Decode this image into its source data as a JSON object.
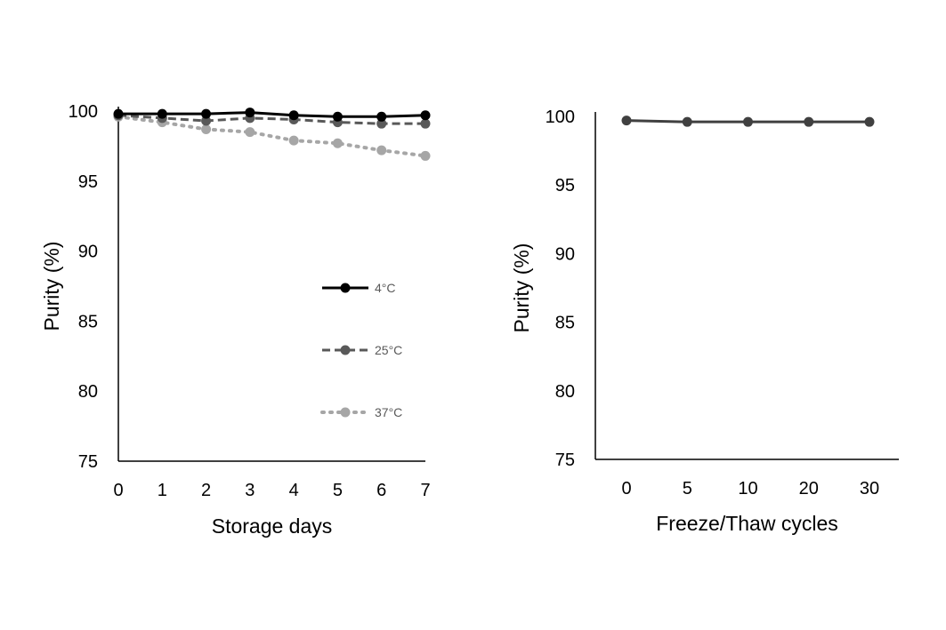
{
  "chart_data": [
    {
      "type": "line",
      "xlabel": "Storage days",
      "ylabel": "Purity (%)",
      "categories": [
        "0",
        "1",
        "2",
        "3",
        "4",
        "5",
        "6",
        "7"
      ],
      "ylim": [
        75,
        100
      ],
      "yticks": [
        "75",
        "80",
        "85",
        "90",
        "95",
        "100"
      ],
      "legend_position": "center-right",
      "series": [
        {
          "name": "4°C",
          "style": "solid",
          "color": "#000000",
          "values": [
            99.8,
            99.8,
            99.8,
            99.9,
            99.7,
            99.6,
            99.6,
            99.7
          ]
        },
        {
          "name": "25°C",
          "style": "dashed",
          "color": "#595959",
          "values": [
            99.7,
            99.5,
            99.3,
            99.5,
            99.4,
            99.2,
            99.1,
            99.1
          ]
        },
        {
          "name": "37°C",
          "style": "dotted",
          "color": "#a6a6a6",
          "values": [
            99.6,
            99.2,
            98.7,
            98.5,
            97.9,
            97.7,
            97.2,
            96.8
          ]
        }
      ]
    },
    {
      "type": "line",
      "xlabel": "Freeze/Thaw cycles",
      "ylabel": "Purity (%)",
      "categories": [
        "0",
        "5",
        "10",
        "20",
        "30"
      ],
      "ylim": [
        75,
        100
      ],
      "yticks": [
        "75",
        "80",
        "85",
        "90",
        "95",
        "100"
      ],
      "series": [
        {
          "name": "Purity",
          "style": "solid",
          "color": "#404040",
          "values": [
            99.7,
            99.6,
            99.6,
            99.6,
            99.6
          ]
        }
      ]
    }
  ]
}
